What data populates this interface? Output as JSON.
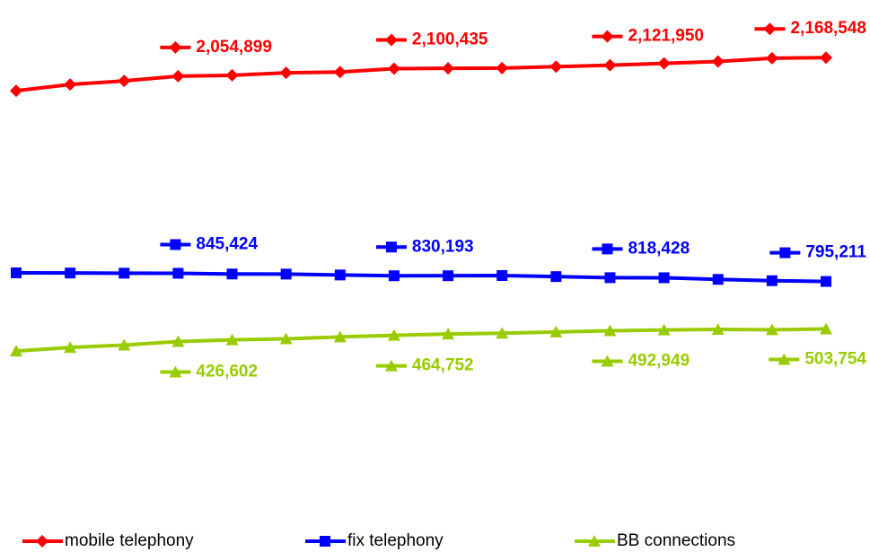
{
  "chart_data": {
    "type": "line",
    "categories": [
      null,
      null,
      null,
      null,
      null,
      null,
      null,
      null,
      null,
      null,
      null,
      null,
      null,
      null,
      null,
      null
    ],
    "ylim": [
      0,
      2500000
    ],
    "legend": "bottom",
    "series": [
      {
        "name": "mobile telephony",
        "color": "#ff0000",
        "marker": "diamond",
        "label_side": "above",
        "values": [
          1965000,
          2003500,
          2025500,
          2054899,
          2060000,
          2075000,
          2080000,
          2100435,
          2103000,
          2104000,
          2113000,
          2121950,
          2133000,
          2145000,
          2165000,
          2168548
        ],
        "value_labels": [
          null,
          null,
          null,
          "2,054,899",
          null,
          null,
          null,
          "2,100,435",
          null,
          null,
          null,
          "2,121,950",
          null,
          null,
          null,
          "2,168,548"
        ]
      },
      {
        "name": "fix telephony",
        "color": "#0000ff",
        "marker": "square",
        "label_side": "above",
        "values": [
          848000,
          847000,
          846000,
          845424,
          841000,
          840500,
          835000,
          830193,
          830500,
          831500,
          825000,
          818428,
          818000,
          808000,
          800000,
          795211
        ],
        "value_labels": [
          null,
          null,
          null,
          "845,424",
          null,
          null,
          null,
          "830,193",
          null,
          null,
          null,
          "818,428",
          null,
          null,
          null,
          "795,211"
        ]
      },
      {
        "name": "BB connections",
        "color": "#99cc00",
        "marker": "triangle",
        "label_side": "below",
        "values": [
          368000,
          390000,
          405000,
          426602,
          437000,
          443000,
          455000,
          464752,
          473000,
          478000,
          485000,
          492949,
          498000,
          501000,
          499000,
          503754
        ],
        "value_labels": [
          null,
          null,
          null,
          "426,602",
          null,
          null,
          null,
          "464,752",
          null,
          null,
          null,
          "492,949",
          null,
          null,
          null,
          "503,754"
        ]
      }
    ]
  }
}
